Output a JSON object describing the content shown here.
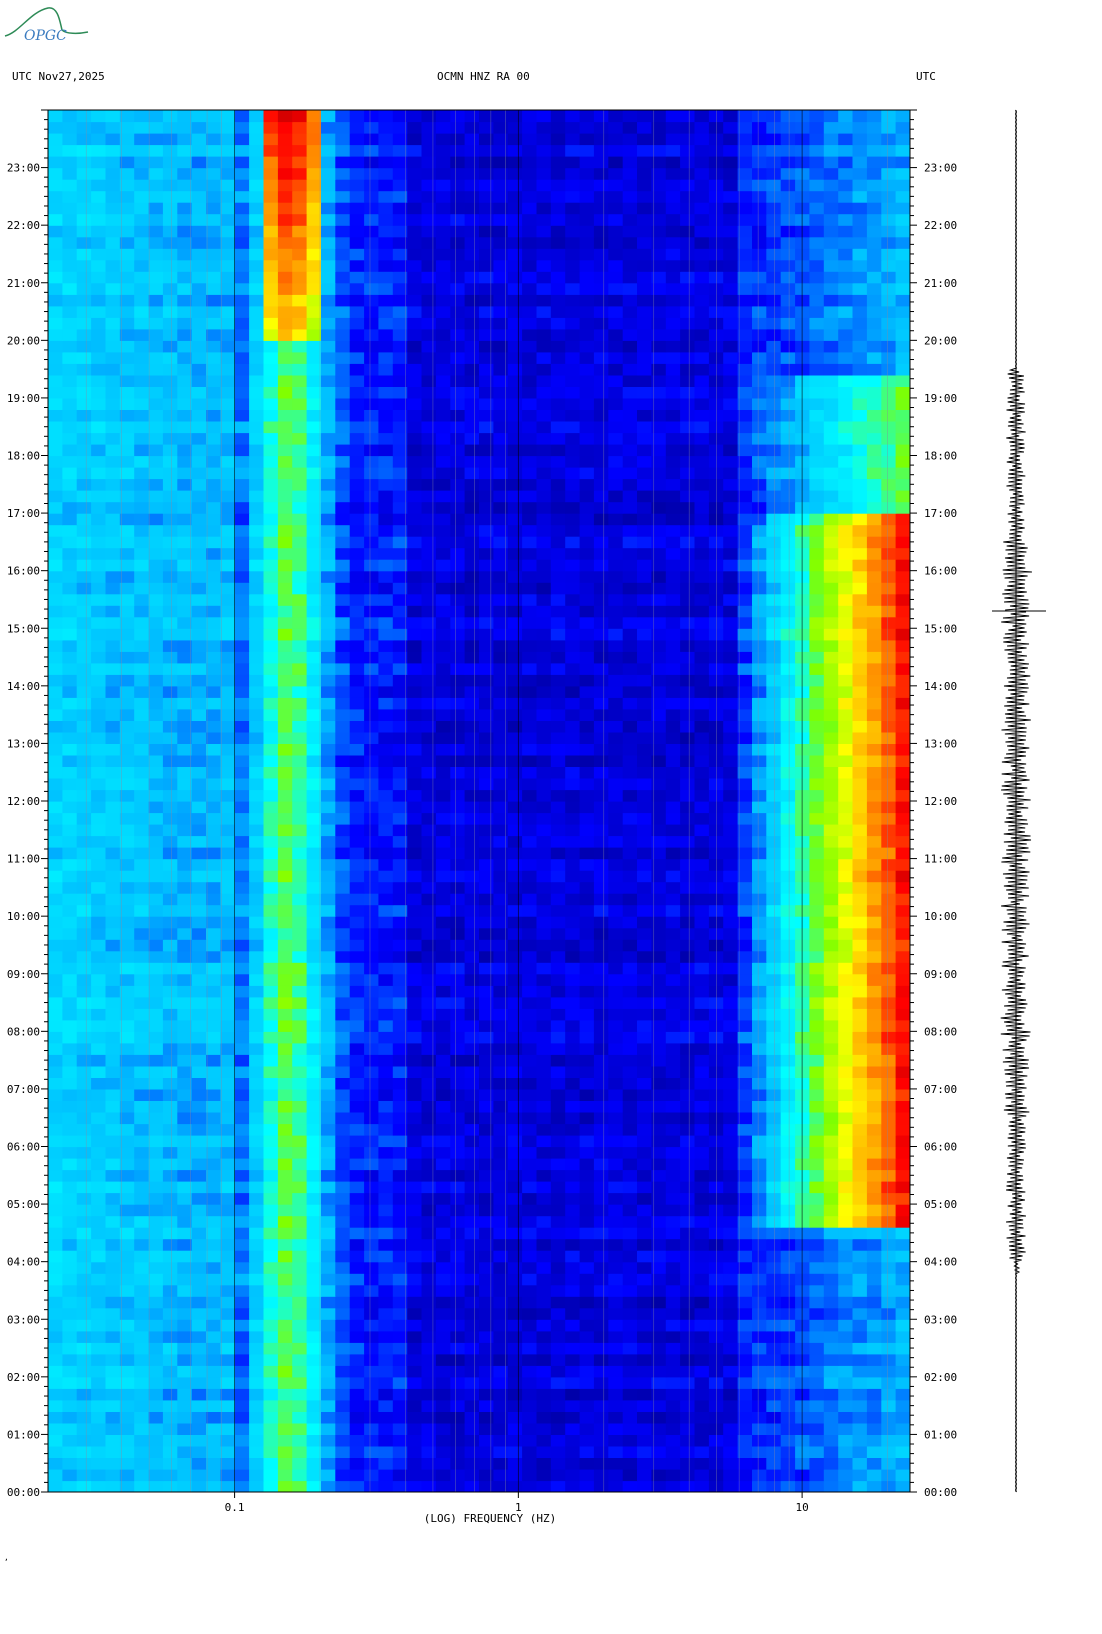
{
  "logo": {
    "text": "OPGC",
    "color": "#2e8b57"
  },
  "header": {
    "left": "UTC  Nov27,2025",
    "center": "OCMN HNZ RA 00",
    "right": "UTC"
  },
  "chart_data": {
    "type": "heatmap",
    "title": "OCMN HNZ RA 00",
    "xlabel": "(LOG) FREQUENCY (HZ)",
    "ylabel": "UTC",
    "x_scale": "log",
    "xlim": [
      0.022,
      24
    ],
    "x_ticks": [
      {
        "value": 0.1,
        "label": "0.1"
      },
      {
        "value": 1,
        "label": "1"
      },
      {
        "value": 10,
        "label": "10"
      }
    ],
    "ylim": [
      "00:00",
      "24:00"
    ],
    "y_ticks": [
      "00:00",
      "01:00",
      "02:00",
      "03:00",
      "04:00",
      "05:00",
      "06:00",
      "07:00",
      "08:00",
      "09:00",
      "10:00",
      "11:00",
      "12:00",
      "13:00",
      "14:00",
      "15:00",
      "16:00",
      "17:00",
      "18:00",
      "19:00",
      "20:00",
      "21:00",
      "22:00",
      "23:00"
    ],
    "colormap": [
      "#00008b",
      "#0000ff",
      "#00bfff",
      "#00ffff",
      "#7fff00",
      "#ffff00",
      "#ff8c00",
      "#ff0000",
      "#8b0000"
    ],
    "features": [
      {
        "name": "microseism",
        "freq_range_hz": [
          0.12,
          0.2
        ],
        "peak_hours": [
          20,
          24
        ]
      },
      {
        "name": "cultural noise",
        "freq_range_hz": [
          10,
          24
        ],
        "peak_hours": [
          4.5,
          16.5
        ]
      }
    ],
    "grid": true
  },
  "seismogram": {
    "active_hours": [
      4,
      19.5
    ],
    "peak_hour": 15.3
  }
}
